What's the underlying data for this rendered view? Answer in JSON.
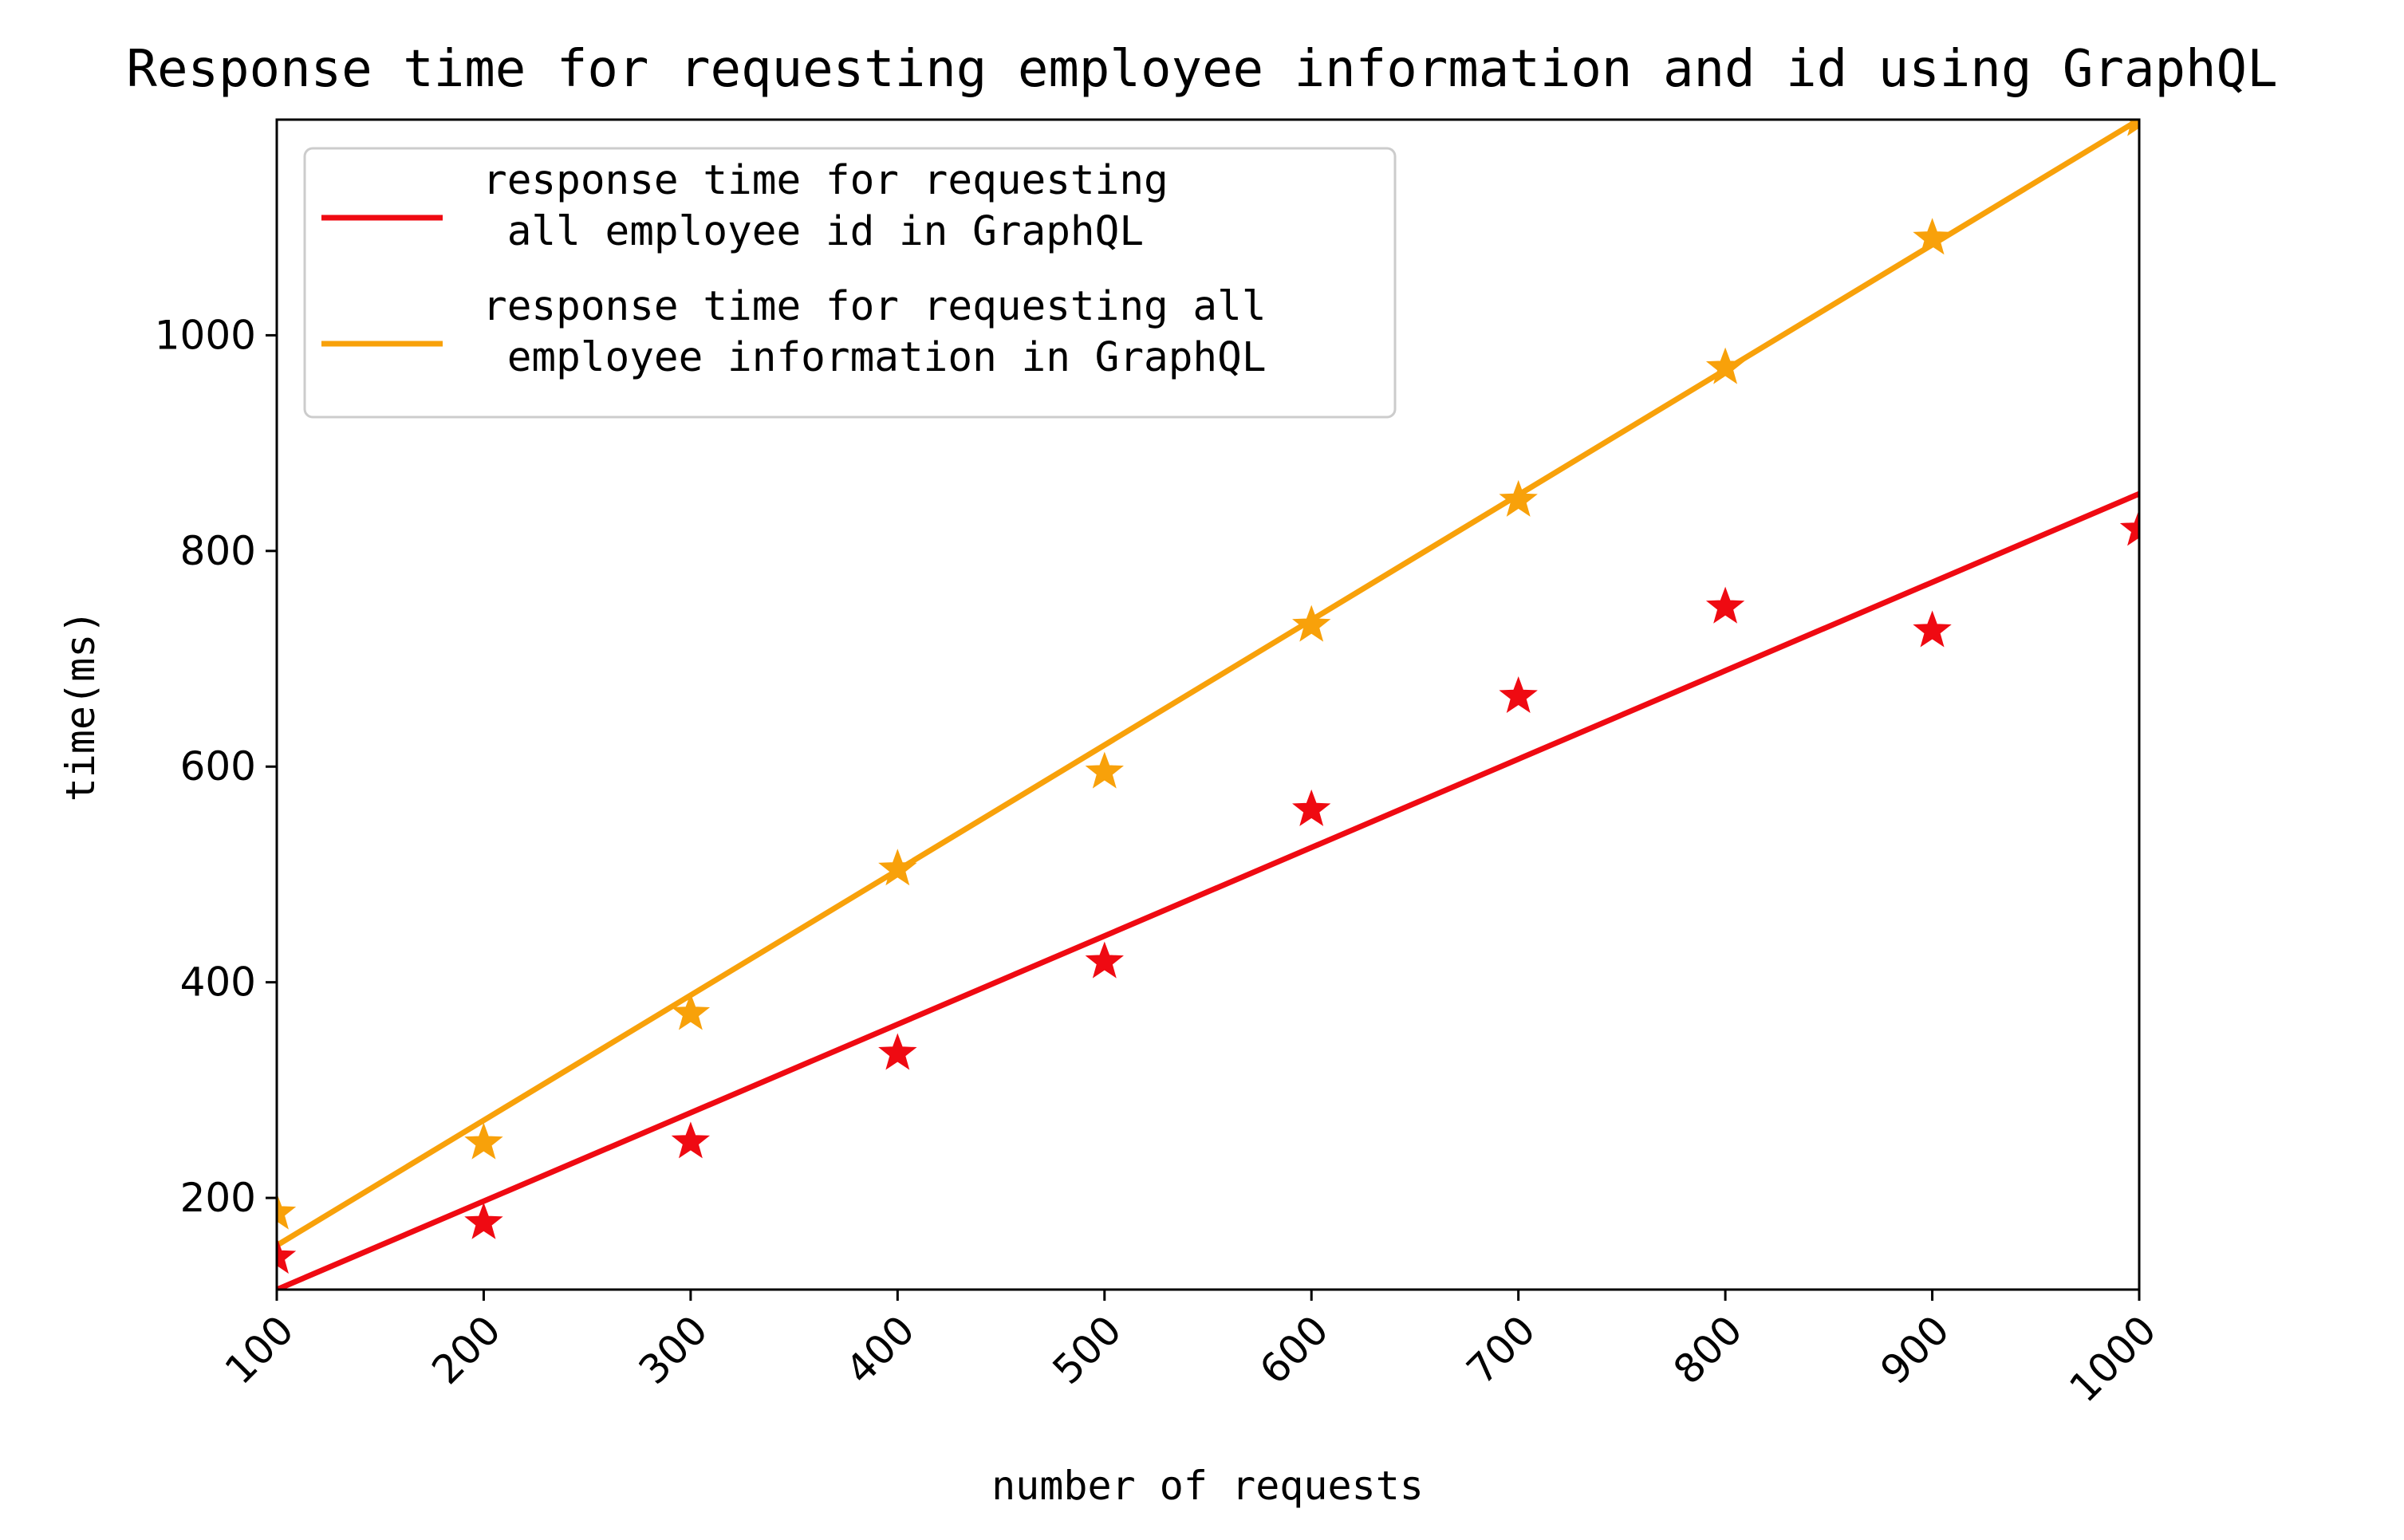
{
  "chart_data": {
    "type": "line",
    "title": "Response time for requesting employee information and id using GraphQL",
    "xlabel": "number of requests",
    "ylabel": "time(ms)",
    "xlim": [
      100,
      1000
    ],
    "ylim": [
      115,
      1200
    ],
    "xticks": [
      100,
      200,
      300,
      400,
      500,
      600,
      700,
      800,
      900,
      1000
    ],
    "yticks": [
      200,
      400,
      600,
      800,
      1000
    ],
    "grid": false,
    "legend_position": "top-left",
    "series": [
      {
        "name": "response time for requesting\n all employee id in GraphQL",
        "color": "#ef0a12",
        "marker": "star",
        "x": [
          100,
          200,
          300,
          400,
          500,
          600,
          700,
          800,
          900,
          1000
        ],
        "y": [
          145,
          177,
          252,
          334,
          419,
          560,
          665,
          748,
          726,
          820
        ],
        "fit": {
          "x": [
            100,
            1000
          ],
          "y": [
            115,
            853
          ]
        }
      },
      {
        "name": "response time for requesting all\n employee information in GraphQL",
        "color": "#f8a10a",
        "marker": "star",
        "x": [
          100,
          200,
          300,
          400,
          500,
          600,
          700,
          800,
          900,
          1000
        ],
        "y": [
          186,
          251,
          371,
          505,
          595,
          731,
          847,
          970,
          1090,
          1200
        ],
        "fit": {
          "x": [
            100,
            1000
          ],
          "y": [
            156,
            1200
          ]
        }
      }
    ]
  }
}
